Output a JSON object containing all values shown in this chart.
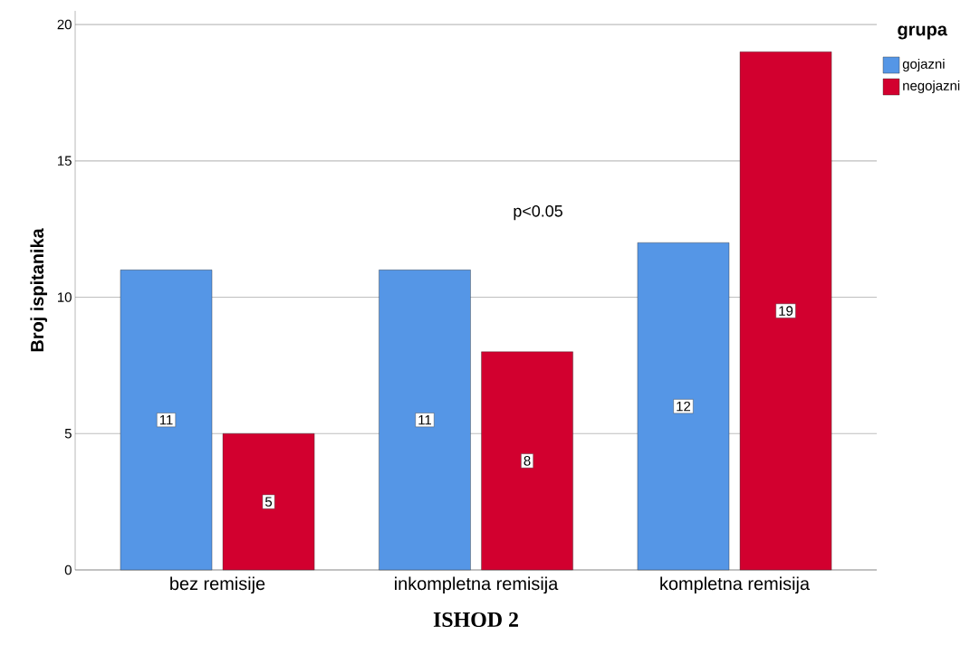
{
  "chart_data": {
    "type": "bar",
    "xlabel": "ISHOD 2",
    "ylabel": "Broj ispitanika",
    "legend_title": "grupa",
    "categories": [
      "bez remisije",
      "inkompletna remisija",
      "kompletna remisija"
    ],
    "series": [
      {
        "name": "gojazni",
        "color": "#5596e6",
        "values": [
          11,
          11,
          12
        ]
      },
      {
        "name": "negojazni",
        "color": "#d2002f",
        "values": [
          5,
          8,
          19
        ]
      }
    ],
    "ylim": [
      0,
      20.5
    ],
    "yticks": [
      0,
      5,
      10,
      15,
      20
    ],
    "grid": "y",
    "legend": "top right",
    "data_labels": true,
    "annotations": [
      "p<0.05"
    ]
  }
}
